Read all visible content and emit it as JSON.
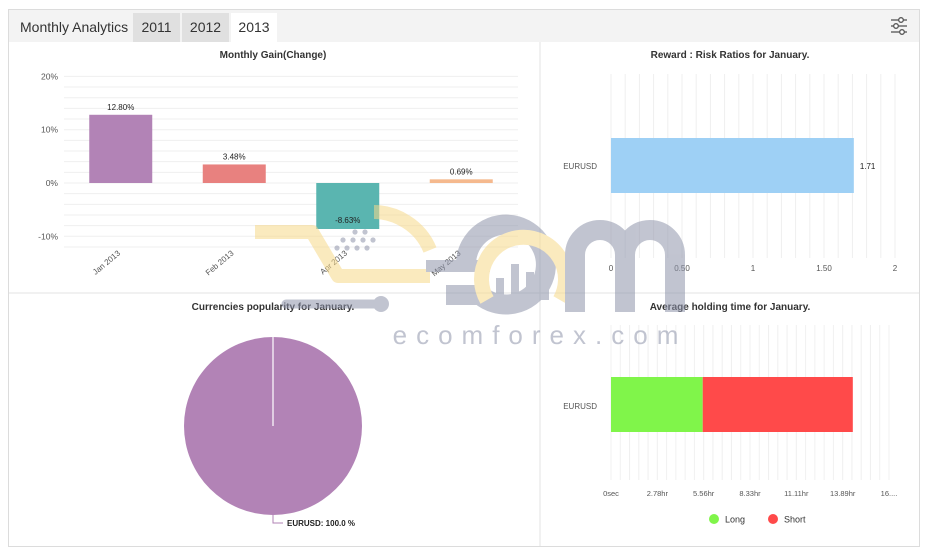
{
  "header": {
    "title": "Monthly Analytics",
    "tabs": [
      {
        "label": "2011",
        "active": false
      },
      {
        "label": "2012",
        "active": false
      },
      {
        "label": "2013",
        "active": true
      }
    ],
    "settings_icon": "sliders-icon"
  },
  "watermark": {
    "text": "ecomforex.com"
  },
  "colors": {
    "gain_bars": [
      "#b283b6",
      "#e8817f",
      "#5ab5b0",
      "#f5b98e"
    ],
    "reward_bar": "#9ed0f5",
    "pie": "#b283b6",
    "long": "#80f54a",
    "short": "#ff4a4a"
  },
  "chart_data": [
    {
      "type": "bar",
      "title": "Monthly Gain(Change)",
      "categories": [
        "Jan 2013",
        "Feb 2013",
        "Apr 2013",
        "May 2013"
      ],
      "values": [
        12.8,
        3.48,
        -8.63,
        0.69
      ],
      "labels": [
        "12.80%",
        "3.48%",
        "-8.63%",
        "0.69%"
      ],
      "y_ticks": [
        "20%",
        "10%",
        "0%",
        "-10%"
      ],
      "ylim": [
        -10,
        20
      ],
      "grid": true
    },
    {
      "type": "bar",
      "orientation": "horizontal",
      "title": "Reward : Risk Ratios for January.",
      "categories": [
        "EURUSD"
      ],
      "values": [
        1.71
      ],
      "labels": [
        "1.71"
      ],
      "x_ticks": [
        "0",
        "0.50",
        "1",
        "1.50",
        "2"
      ],
      "xlim": [
        0,
        2
      ],
      "grid": true
    },
    {
      "type": "pie",
      "title": "Currencies popularity for January.",
      "categories": [
        "EURUSD"
      ],
      "values": [
        100.0
      ],
      "labels": [
        "EURUSD: 100.0 %"
      ]
    },
    {
      "type": "bar",
      "orientation": "horizontal",
      "stacked": true,
      "title": "Average holding time for January.",
      "categories": [
        "EURUSD"
      ],
      "series": [
        {
          "name": "Long",
          "values": [
            5.5
          ]
        },
        {
          "name": "Short",
          "values": [
            9.0
          ]
        }
      ],
      "x_ticks": [
        "0sec",
        "2.78hr",
        "5.56hr",
        "8.33hr",
        "11.11hr",
        "13.89hr",
        "16...."
      ],
      "xlim": [
        0,
        16.67
      ],
      "legend": "bottom",
      "grid": true
    }
  ]
}
